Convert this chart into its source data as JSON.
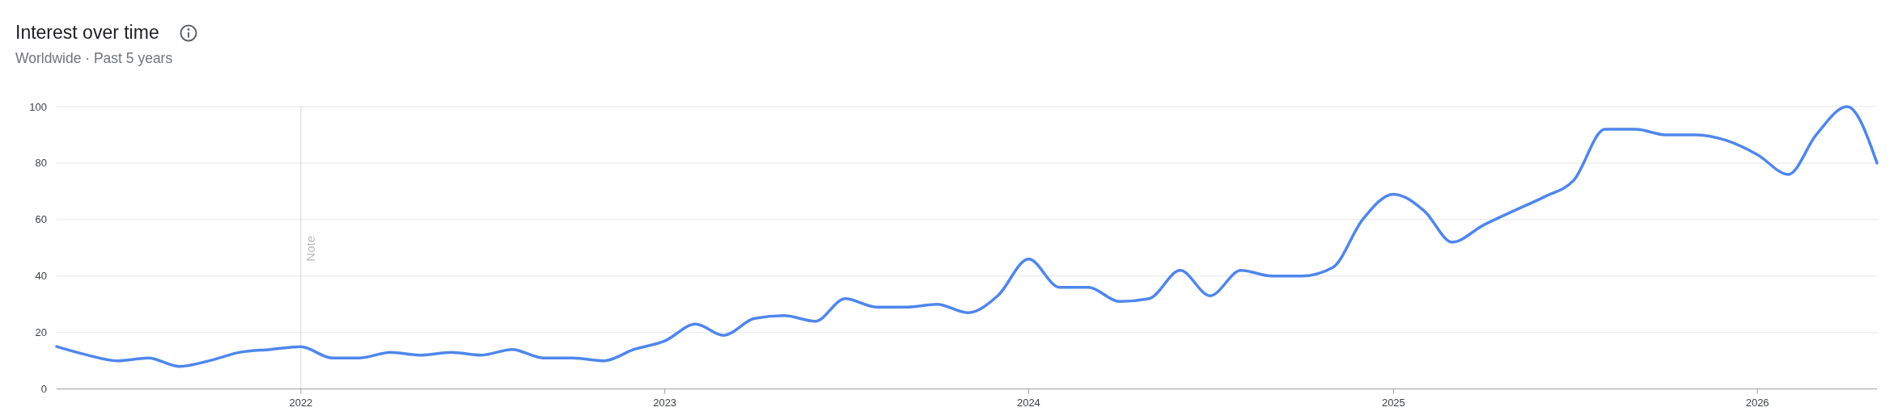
{
  "chart_data": {
    "type": "line",
    "title": "Interest over time",
    "subtitle": "Worldwide · Past 5 years",
    "x": [
      "2021-05",
      "2021-06",
      "2021-07",
      "2021-08",
      "2021-09",
      "2021-10",
      "2021-11",
      "2021-12",
      "2022-01",
      "2022-02",
      "2022-03",
      "2022-04",
      "2022-05",
      "2022-06",
      "2022-07",
      "2022-08",
      "2022-09",
      "2022-10",
      "2022-11",
      "2022-12",
      "2023-01",
      "2023-02",
      "2023-03",
      "2023-04",
      "2023-05",
      "2023-06",
      "2023-07",
      "2023-08",
      "2023-09",
      "2023-10",
      "2023-11",
      "2023-12",
      "2024-01",
      "2024-02",
      "2024-03",
      "2024-04",
      "2024-05",
      "2024-06",
      "2024-07",
      "2024-08",
      "2024-09",
      "2024-10",
      "2024-11",
      "2024-12",
      "2025-01",
      "2025-02",
      "2025-03",
      "2025-04",
      "2025-05",
      "2025-06",
      "2025-07",
      "2025-08",
      "2025-09",
      "2025-10",
      "2025-11",
      "2025-12",
      "2026-01",
      "2026-02",
      "2026-03",
      "2026-04",
      "2026-05"
    ],
    "values": [
      15,
      12,
      10,
      11,
      8,
      10,
      13,
      14,
      15,
      11,
      11,
      13,
      12,
      13,
      12,
      14,
      11,
      11,
      10,
      14,
      17,
      23,
      19,
      25,
      26,
      24,
      32,
      29,
      29,
      30,
      27,
      33,
      46,
      36,
      36,
      31,
      32,
      42,
      33,
      42,
      40,
      40,
      43,
      60,
      69,
      63,
      52,
      58,
      63,
      68,
      74,
      92,
      92,
      90,
      90,
      88,
      83,
      76,
      90,
      100,
      80
    ],
    "color": "#4f86ec",
    "line_style": "solid",
    "xlim": [
      "2021-05",
      "2026-05"
    ],
    "xticks": [
      "2022",
      "2023",
      "2024",
      "2025",
      "2026"
    ],
    "ylim": [
      0,
      100
    ],
    "yticks": [
      0,
      20,
      40,
      60,
      80,
      100
    ],
    "grid": "y",
    "ref_lines": [
      {
        "axis": "x",
        "value": "2022-01",
        "label": "Note"
      }
    ]
  }
}
